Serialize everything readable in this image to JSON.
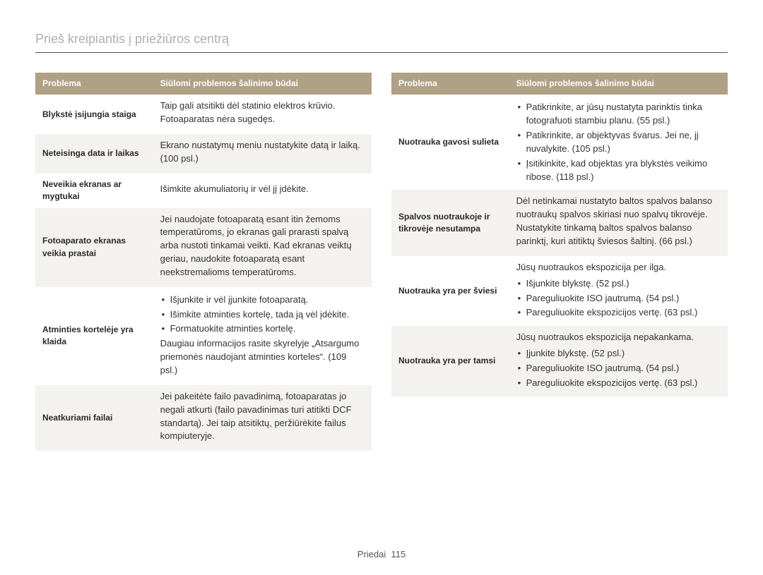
{
  "title": "Prieš kreipiantis į priežiūros centrą",
  "footer_label": "Priedai",
  "footer_page": "115",
  "header_problem": "Problema",
  "header_solution": "Siūlomi problemos šalinimo būdai",
  "left": [
    {
      "p": "Blykstė įsijungia staiga",
      "s": {
        "type": "plain",
        "lines": [
          "Taip gali atsitikti dėl statinio elektros krūvio. Fotoaparatas nėra sugedęs."
        ]
      }
    },
    {
      "p": "Neteisinga data ir laikas",
      "s": {
        "type": "plain",
        "lines": [
          "Ekrano nustatymų meniu nustatykite datą ir laiką. (100 psl.)"
        ]
      }
    },
    {
      "p": "Neveikia ekranas ar mygtukai",
      "s": {
        "type": "plain",
        "lines": [
          "Išimkite akumuliatorių ir vėl jį įdėkite."
        ]
      }
    },
    {
      "p": "Fotoaparato ekranas veikia prastai",
      "s": {
        "type": "plain",
        "lines": [
          "Jei naudojate fotoaparatą esant itin žemoms temperatūroms, jo ekranas gali prarasti spalvą arba nustoti tinkamai veikti. Kad ekranas veiktų geriau, naudokite fotoaparatą esant neekstremalioms temperatūroms."
        ]
      }
    },
    {
      "p": "Atminties kortelėje yra klaida",
      "s": {
        "type": "mixed",
        "bullets": [
          "Išjunkite ir vėl įjunkite fotoaparatą.",
          "Išimkite atminties kortelę, tada ją vėl įdėkite.",
          "Formatuokite atminties kortelę."
        ],
        "trail": "Daugiau informacijos rasite skyrelyje „Atsargumo priemonės naudojant atminties korteles“. (109 psl.)"
      }
    },
    {
      "p": "Neatkuriami failai",
      "s": {
        "type": "plain",
        "lines": [
          "Jei pakeitėte failo pavadinimą, fotoaparatas jo negali atkurti (failo pavadinimas turi atitikti DCF standartą). Jei taip atsitiktų, peržiūrėkite failus kompiuteryje."
        ]
      }
    }
  ],
  "right": [
    {
      "p": "Nuotrauka gavosi sulieta",
      "s": {
        "type": "bullets",
        "bullets": [
          "Patikrinkite, ar jūsų nustatyta parinktis tinka fotografuoti stambiu planu. (55 psl.)",
          "Patikrinkite, ar objektyvas švarus. Jei ne, jį nuvalykite. (105 psl.)",
          "Įsitikinkite, kad objektas yra blykstės veikimo ribose. (118 psl.)"
        ]
      }
    },
    {
      "p": "Spalvos nuotraukoje ir tikrovėje nesutampa",
      "s": {
        "type": "plain",
        "lines": [
          "Dėl netinkamai nustatyto baltos spalvos balanso nuotraukų spalvos skiriasi nuo spalvų tikrovėje. Nustatykite tinkamą baltos spalvos balanso parinktį, kuri atitiktų šviesos šaltinį. (66 psl.)"
        ]
      }
    },
    {
      "p": "Nuotrauka yra per šviesi",
      "s": {
        "type": "leadbullets",
        "lead": "Jūsų nuotraukos ekspozicija per ilga.",
        "bullets": [
          "Išjunkite blykstę. (52 psl.)",
          "Pareguliuokite ISO jautrumą. (54 psl.)",
          "Pareguliuokite ekspozicijos vertę. (63 psl.)"
        ]
      }
    },
    {
      "p": "Nuotrauka yra per tamsi",
      "s": {
        "type": "leadbullets",
        "lead": "Jūsų nuotraukos ekspozicija nepakankama.",
        "bullets": [
          "Įjunkite blykstę. (52 psl.)",
          "Pareguliuokite ISO jautrumą. (54 psl.)",
          "Pareguliuokite ekspozicijos vertę. (63 psl.)"
        ]
      }
    }
  ]
}
